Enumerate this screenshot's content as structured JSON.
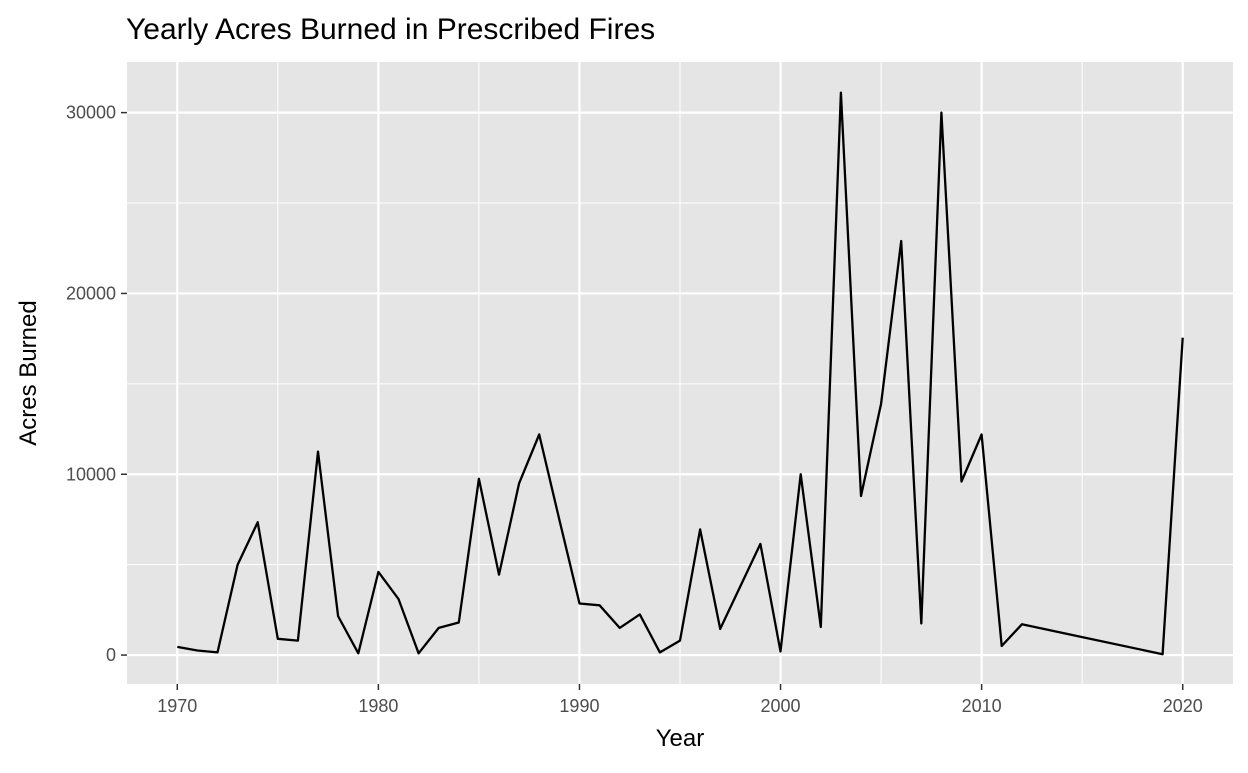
{
  "chart_data": {
    "type": "line",
    "title": "Yearly Acres Burned in Prescribed Fires",
    "xlabel": "Year",
    "ylabel": "Acres Burned",
    "xlim": [
      1967.5,
      2022.5
    ],
    "ylim": [
      -1600,
      32800
    ],
    "x_ticks": [
      1970,
      1980,
      1990,
      2000,
      2010,
      2020
    ],
    "x_tick_labels": [
      "1970",
      "1980",
      "1990",
      "2000",
      "2010",
      "2020"
    ],
    "y_ticks": [
      0,
      10000,
      20000,
      30000
    ],
    "y_tick_labels": [
      "0",
      "10000",
      "20000",
      "30000"
    ],
    "grid": true,
    "legend": "none",
    "colors": {
      "panel": "#e5e5e5",
      "grid": "#ffffff",
      "line": "#000000"
    },
    "series": [
      {
        "x": [
          1970,
          1971,
          1972,
          1973,
          1974,
          1975,
          1976,
          1977,
          1978,
          1979,
          1980,
          1981,
          1982,
          1983,
          1984,
          1985,
          1986,
          1987,
          1988,
          1989,
          1990,
          1991,
          1992,
          1993,
          1994,
          1995,
          1996,
          1997,
          1998,
          1999,
          2000,
          2001,
          2002,
          2003,
          2004,
          2005,
          2006,
          2007,
          2008,
          2009,
          2010,
          2011,
          2012,
          2019,
          2020
        ],
        "values": [
          450,
          250,
          150,
          5000,
          7350,
          900,
          800,
          11250,
          2150,
          100,
          4600,
          3100,
          100,
          1500,
          1800,
          9750,
          4450,
          9500,
          12200,
          7500,
          2850,
          2750,
          1500,
          2250,
          150,
          800,
          6950,
          1450,
          3800,
          6150,
          200,
          10000,
          1550,
          31100,
          8800,
          13900,
          22900,
          1750,
          30000,
          9600,
          12200,
          500,
          1700,
          50,
          17550
        ]
      }
    ]
  }
}
